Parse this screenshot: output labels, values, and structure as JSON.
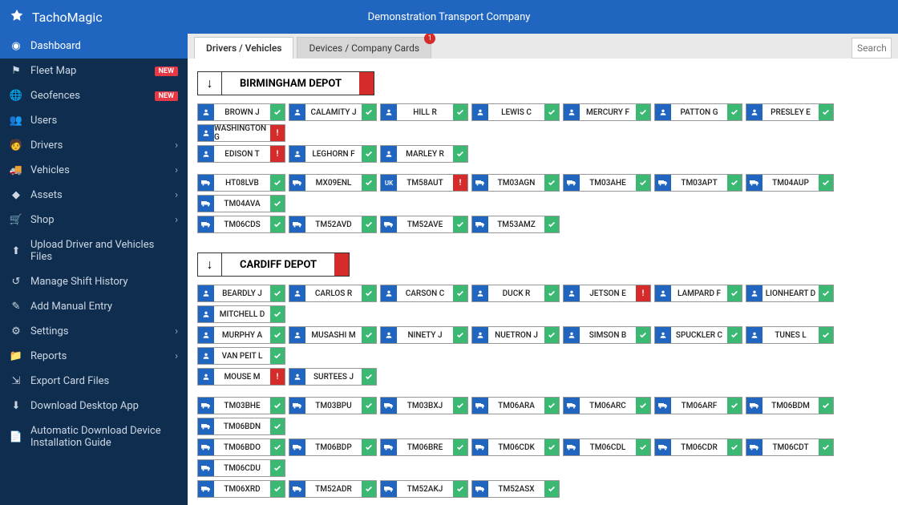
{
  "brand": "TachoMagic",
  "company": "Demonstration Transport Company",
  "search": {
    "placeholder": "Search"
  },
  "colors": {
    "topbar": "#2066c0",
    "sidebar": "#0f2e4f",
    "accent_green": "#3bb872",
    "accent_red": "#d52b2b",
    "badge_red": "#e63946"
  },
  "sidebar": {
    "items": [
      {
        "icon": "gauge",
        "label": "Dashboard",
        "active": true
      },
      {
        "icon": "flag",
        "label": "Fleet Map",
        "badge": "NEW"
      },
      {
        "icon": "globe",
        "label": "Geofences",
        "badge": "NEW"
      },
      {
        "icon": "users",
        "label": "Users"
      },
      {
        "icon": "driver",
        "label": "Drivers",
        "expandable": true
      },
      {
        "icon": "truck",
        "label": "Vehicles",
        "expandable": true
      },
      {
        "icon": "cube",
        "label": "Assets",
        "expandable": true
      },
      {
        "icon": "shop",
        "label": "Shop",
        "expandable": true
      },
      {
        "icon": "upload",
        "label": "Upload Driver and Vehicles Files"
      },
      {
        "icon": "history",
        "label": "Manage Shift History"
      },
      {
        "icon": "edit",
        "label": "Add Manual Entry"
      },
      {
        "icon": "cog",
        "label": "Settings",
        "expandable": true
      },
      {
        "icon": "folder",
        "label": "Reports",
        "expandable": true
      },
      {
        "icon": "export",
        "label": "Export Card Files"
      },
      {
        "icon": "download",
        "label": "Download Desktop App"
      },
      {
        "icon": "guide",
        "label": "Automatic Download Device Installation Guide"
      }
    ]
  },
  "tabs": [
    {
      "label": "Drivers / Vehicles",
      "active": true
    },
    {
      "label": "Devices / Company Cards",
      "badge": "1"
    }
  ],
  "depots": [
    {
      "name": "BIRMINGHAM DEPOT",
      "drivers": [
        [
          {
            "name": "BROWN J",
            "status": "ok"
          },
          {
            "name": "CALAMITY J",
            "status": "ok"
          },
          {
            "name": "HILL R",
            "status": "ok"
          },
          {
            "name": "LEWIS C",
            "status": "ok"
          },
          {
            "name": "MERCURY F",
            "status": "ok"
          },
          {
            "name": "PATTON G",
            "status": "ok"
          },
          {
            "name": "PRESLEY E",
            "status": "ok"
          },
          {
            "name": "WASHINGTON G",
            "status": "bad"
          }
        ],
        [
          {
            "name": "EDISON T",
            "status": "bad"
          },
          {
            "name": "LEGHORN F",
            "status": "ok"
          },
          {
            "name": "MARLEY R",
            "status": "ok"
          }
        ]
      ],
      "vehicles": [
        [
          {
            "reg": "HT08LVB",
            "status": "ok"
          },
          {
            "reg": "MX09ENL",
            "status": "ok"
          },
          {
            "reg": "TM58AUT",
            "status": "bad",
            "lead": "uk"
          },
          {
            "reg": "TM03AGN",
            "status": "ok"
          },
          {
            "reg": "TM03AHE",
            "status": "ok"
          },
          {
            "reg": "TM03APT",
            "status": "ok"
          },
          {
            "reg": "TM04AUP",
            "status": "ok"
          },
          {
            "reg": "TM04AVA",
            "status": "ok"
          }
        ],
        [
          {
            "reg": "TM06CDS",
            "status": "ok"
          },
          {
            "reg": "TM52AVD",
            "status": "ok"
          },
          {
            "reg": "TM52AVE",
            "status": "ok"
          },
          {
            "reg": "TM53AMZ",
            "status": "ok"
          }
        ]
      ]
    },
    {
      "name": "CARDIFF DEPOT",
      "drivers": [
        [
          {
            "name": "BEARDLY J",
            "status": "ok"
          },
          {
            "name": "CARLOS R",
            "status": "ok"
          },
          {
            "name": "CARSON C",
            "status": "ok"
          },
          {
            "name": "DUCK R",
            "status": "ok"
          },
          {
            "name": "JETSON E",
            "status": "bad"
          },
          {
            "name": "LAMPARD F",
            "status": "ok"
          },
          {
            "name": "LIONHEART D",
            "status": "ok"
          },
          {
            "name": "MITCHELL D",
            "status": "ok"
          }
        ],
        [
          {
            "name": "MURPHY A",
            "status": "ok"
          },
          {
            "name": "MUSASHI M",
            "status": "ok"
          },
          {
            "name": "NINETY J",
            "status": "ok"
          },
          {
            "name": "NUETRON J",
            "status": "ok"
          },
          {
            "name": "SIMSON B",
            "status": "ok"
          },
          {
            "name": "SPUCKLER C",
            "status": "ok"
          },
          {
            "name": "TUNES L",
            "status": "ok"
          },
          {
            "name": "VAN PEIT L",
            "status": "ok"
          }
        ],
        [
          {
            "name": "MOUSE M",
            "status": "bad"
          },
          {
            "name": "SURTEES J",
            "status": "ok"
          }
        ]
      ],
      "vehicles": [
        [
          {
            "reg": "TM03BHE",
            "status": "ok"
          },
          {
            "reg": "TM03BPU",
            "status": "ok"
          },
          {
            "reg": "TM03BXJ",
            "status": "ok"
          },
          {
            "reg": "TM06ARA",
            "status": "ok"
          },
          {
            "reg": "TM06ARC",
            "status": "ok"
          },
          {
            "reg": "TM06ARF",
            "status": "ok"
          },
          {
            "reg": "TM06BDM",
            "status": "ok"
          },
          {
            "reg": "TM06BDN",
            "status": "ok"
          }
        ],
        [
          {
            "reg": "TM06BDO",
            "status": "ok"
          },
          {
            "reg": "TM06BDP",
            "status": "ok"
          },
          {
            "reg": "TM06BRE",
            "status": "ok"
          },
          {
            "reg": "TM06CDK",
            "status": "ok"
          },
          {
            "reg": "TM06CDL",
            "status": "ok"
          },
          {
            "reg": "TM06CDR",
            "status": "ok"
          },
          {
            "reg": "TM06CDT",
            "status": "ok"
          },
          {
            "reg": "TM06CDU",
            "status": "ok"
          }
        ],
        [
          {
            "reg": "TM06XRD",
            "status": "ok"
          },
          {
            "reg": "TM52ADR",
            "status": "ok"
          },
          {
            "reg": "TM52AKJ",
            "status": "ok"
          },
          {
            "reg": "TM52ASX",
            "status": "ok"
          }
        ]
      ]
    }
  ]
}
